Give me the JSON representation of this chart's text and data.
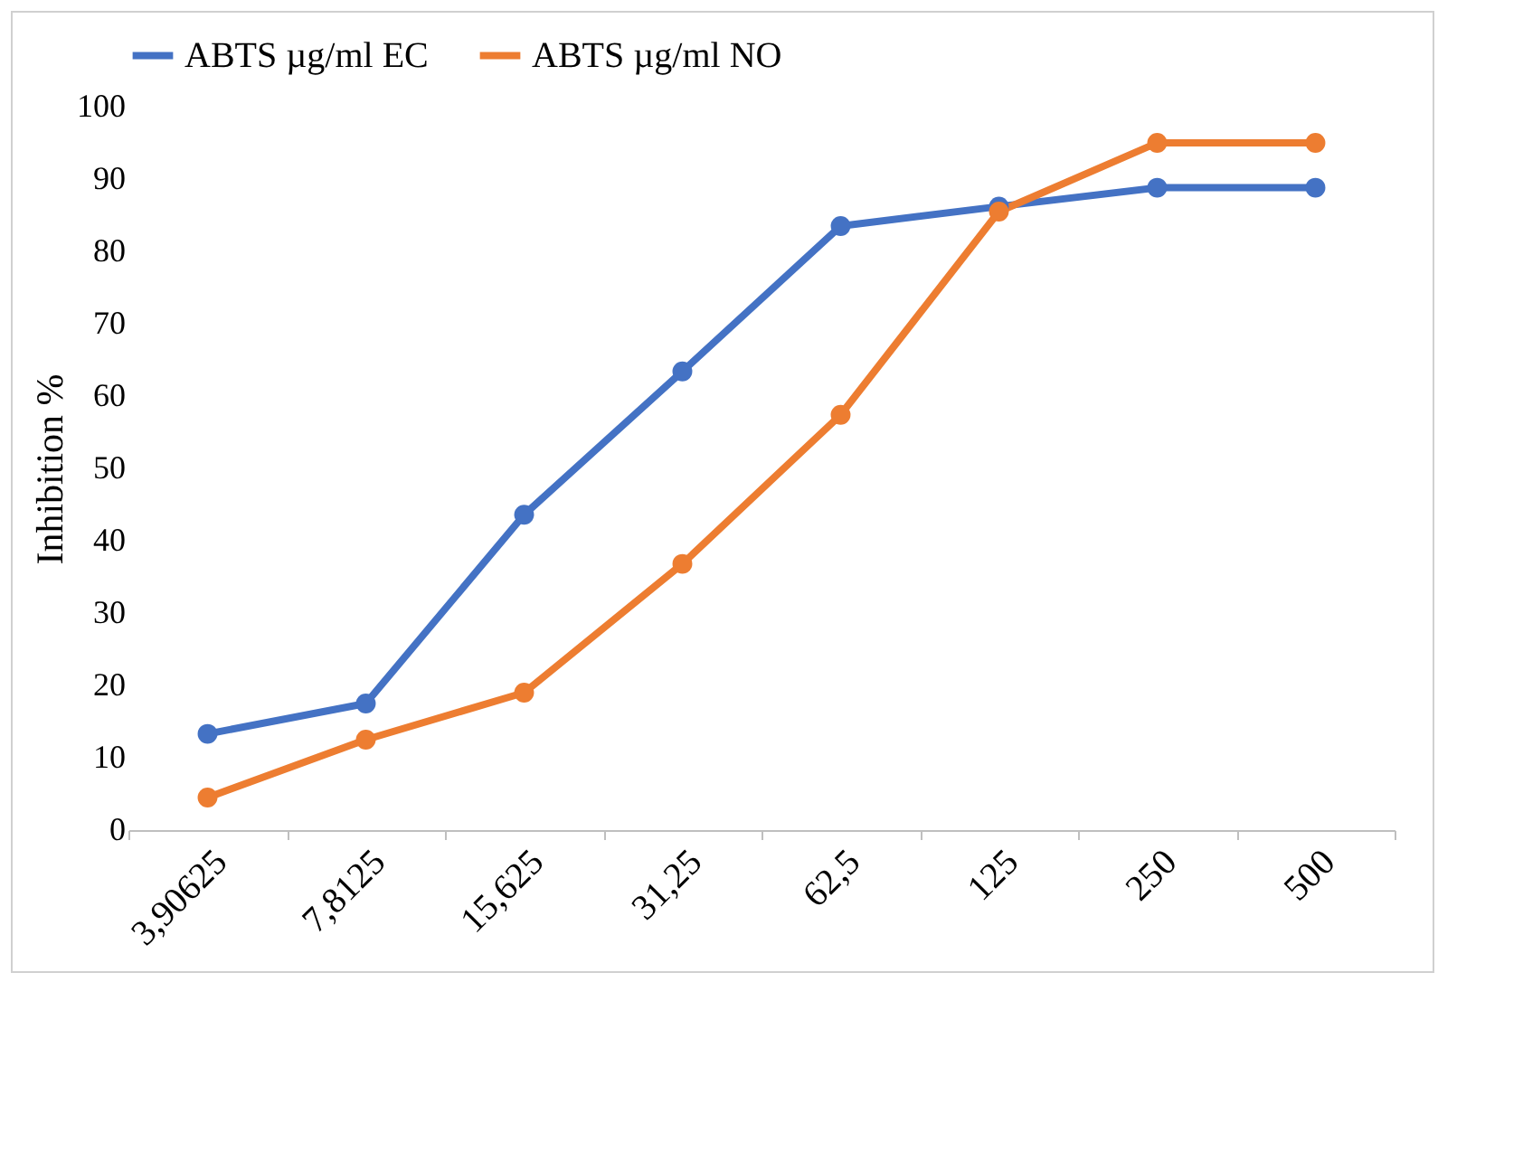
{
  "chart_data": {
    "type": "line",
    "ylabel": "Inhibition %",
    "categories": [
      "3,90625",
      "7,8125",
      "15,625",
      "31,25",
      "62,5",
      "125",
      "250",
      "500"
    ],
    "series": [
      {
        "name": "ABTS µg/ml EC",
        "color": "#4472c4",
        "values": [
          13.3,
          17.5,
          43.6,
          63.4,
          83.5,
          86.2,
          88.8,
          88.8
        ]
      },
      {
        "name": "ABTS µg/ml NO",
        "color": "#ed7d31",
        "values": [
          4.5,
          12.5,
          19,
          36.8,
          57.4,
          85.5,
          95,
          95
        ]
      }
    ],
    "ylim": [
      0,
      100
    ],
    "yticks": [
      0,
      10,
      20,
      30,
      40,
      50,
      60,
      70,
      80,
      90,
      100
    ],
    "grid": false,
    "legend": "top",
    "marker": "circle",
    "line_style": "solid"
  }
}
